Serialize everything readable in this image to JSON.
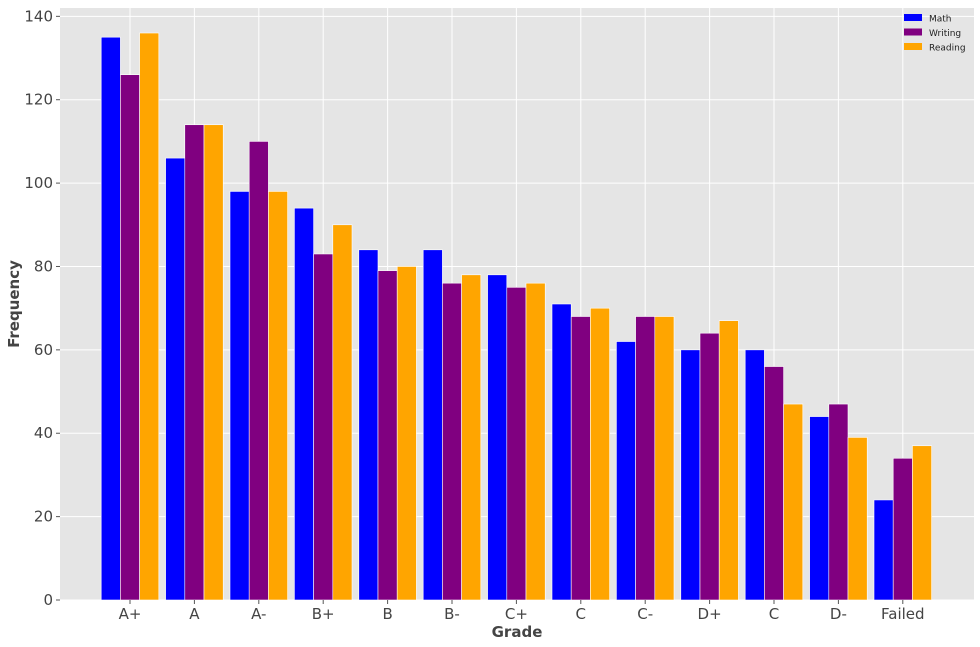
{
  "chart_data": {
    "type": "bar",
    "title": "",
    "xlabel": "Grade",
    "ylabel": "Frequency",
    "ylim": [
      0,
      142
    ],
    "yticks": [
      0,
      20,
      40,
      60,
      80,
      100,
      120,
      140
    ],
    "grid": true,
    "legend_position": "top-right",
    "categories": [
      "A+",
      "A",
      "A-",
      "B+",
      "B",
      "B-",
      "C+",
      "C",
      "C-",
      "D+",
      "C",
      "D-",
      "Failed"
    ],
    "series": [
      {
        "name": "Math",
        "color": "#0000ff",
        "values": [
          135,
          106,
          98,
          94,
          84,
          84,
          78,
          71,
          62,
          60,
          60,
          44,
          24
        ]
      },
      {
        "name": "Writing",
        "color": "#800080",
        "values": [
          126,
          114,
          110,
          83,
          79,
          76,
          75,
          68,
          68,
          64,
          56,
          47,
          34
        ]
      },
      {
        "name": "Reading",
        "color": "#ffa500",
        "values": [
          136,
          114,
          98,
          90,
          80,
          78,
          76,
          70,
          68,
          67,
          47,
          39,
          37
        ]
      }
    ]
  }
}
